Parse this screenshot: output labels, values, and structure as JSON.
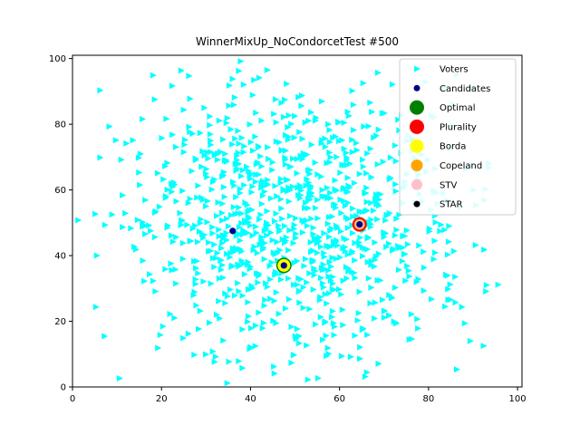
{
  "chart_data": {
    "type": "scatter",
    "title": "WinnerMixUp_NoCondorcetTest #500",
    "xlabel": "",
    "ylabel": "",
    "xlim": [
      0,
      101
    ],
    "ylim": [
      0,
      101
    ],
    "xticks": [
      0,
      20,
      40,
      60,
      80,
      100
    ],
    "yticks": [
      0,
      20,
      40,
      60,
      80,
      100
    ],
    "grid": false,
    "legend_position": "top-right",
    "voter_distribution": {
      "count": 1000,
      "center": [
        50,
        50
      ],
      "spread": 20,
      "seed": 500
    },
    "series": [
      {
        "name": "Voters",
        "marker": "triangle-right",
        "color": "#00ffff",
        "points": []
      },
      {
        "name": "Candidates",
        "marker": "circle",
        "color": "#00008b",
        "points": [
          [
            36,
            47.5
          ],
          [
            47.5,
            37
          ],
          [
            64.5,
            49.5
          ]
        ]
      },
      {
        "name": "Optimal",
        "marker": "circle",
        "color": "#008000",
        "points": [
          [
            47.5,
            37
          ]
        ]
      },
      {
        "name": "Plurality",
        "marker": "circle",
        "color": "#ff0000",
        "points": [
          [
            64.5,
            49.5
          ]
        ]
      },
      {
        "name": "Borda",
        "marker": "circle",
        "color": "#ffff00",
        "points": [
          [
            47.5,
            37
          ]
        ]
      },
      {
        "name": "Copeland",
        "marker": "circle",
        "color": "#ffa500",
        "points": [
          [
            64.5,
            49.5
          ]
        ]
      },
      {
        "name": "STV",
        "marker": "circle",
        "color": "#ffc0cb",
        "points": [
          [
            64.5,
            49.5
          ]
        ]
      },
      {
        "name": "STAR",
        "marker": "circle",
        "color": "#000000",
        "points": [
          [
            64.5,
            49.5
          ]
        ]
      }
    ]
  }
}
